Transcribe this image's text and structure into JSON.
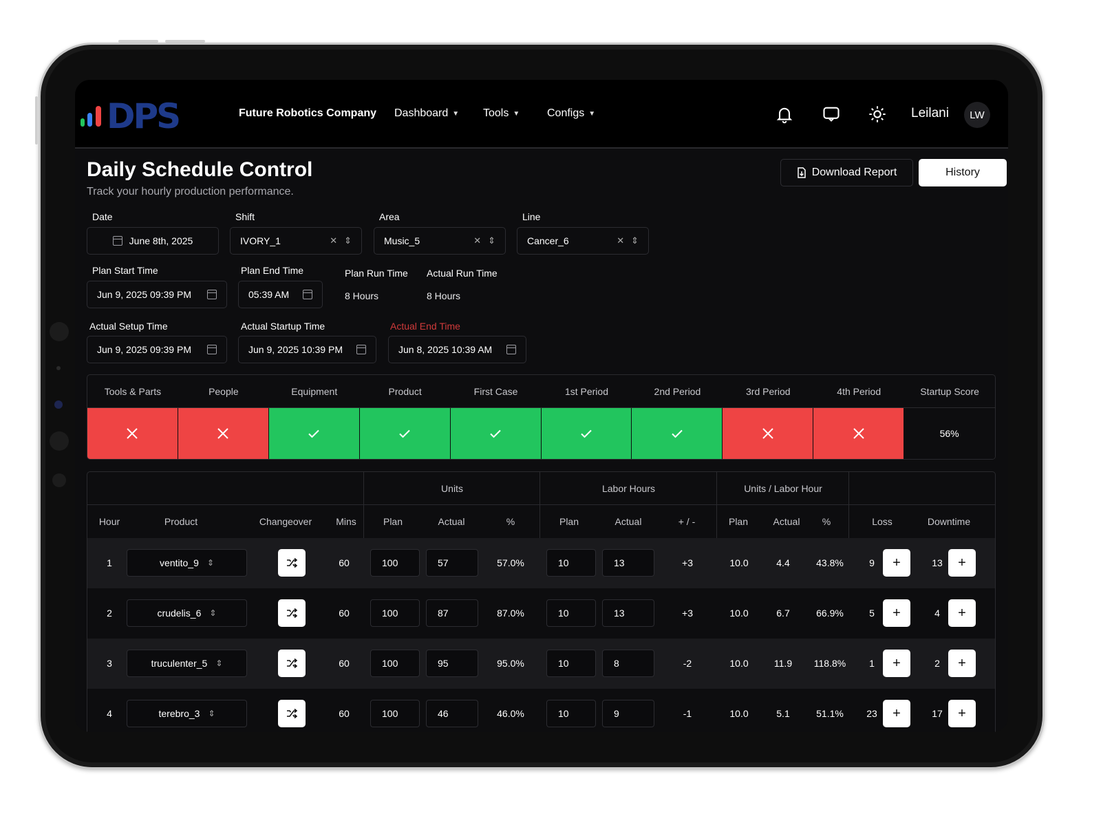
{
  "brand": {
    "logo_text": "DPS",
    "company": "Future Robotics Company"
  },
  "nav": {
    "dashboard": "Dashboard",
    "tools": "Tools",
    "configs": "Configs"
  },
  "user": {
    "name": "Leilani",
    "initials": "LW"
  },
  "page": {
    "title": "Daily Schedule Control",
    "subtitle": "Track your hourly production performance."
  },
  "actions": {
    "download": "Download Report",
    "history": "History"
  },
  "filters": {
    "date": {
      "label": "Date",
      "value": "June 8th, 2025"
    },
    "shift": {
      "label": "Shift",
      "value": "IVORY_1"
    },
    "area": {
      "label": "Area",
      "value": "Music_5"
    },
    "line": {
      "label": "Line",
      "value": "Cancer_6"
    }
  },
  "times": {
    "plan_start": {
      "label": "Plan Start Time",
      "value": "Jun 9, 2025 09:39 PM"
    },
    "plan_end": {
      "label": "Plan End Time",
      "value": "05:39 AM"
    },
    "plan_run": {
      "label": "Plan Run Time",
      "value": "8 Hours"
    },
    "actual_run": {
      "label": "Actual Run Time",
      "value": "8 Hours"
    },
    "actual_setup": {
      "label": "Actual Setup Time",
      "value": "Jun 9, 2025 09:39 PM"
    },
    "actual_startup": {
      "label": "Actual Startup Time",
      "value": "Jun 9, 2025 10:39 PM"
    },
    "actual_end": {
      "label": "Actual End Time",
      "value": "Jun 8, 2025 10:39 AM"
    }
  },
  "startup": {
    "headers": [
      "Tools & Parts",
      "People",
      "Equipment",
      "Product",
      "First Case",
      "1st Period",
      "2nd Period",
      "3rd Period",
      "4th Period",
      "Startup Score"
    ],
    "results": [
      "fail",
      "fail",
      "pass",
      "pass",
      "pass",
      "pass",
      "pass",
      "fail",
      "fail"
    ],
    "score": "56%"
  },
  "colors": {
    "fail": "#ef4444",
    "pass": "#22c55e",
    "background": "#0d0d0f"
  },
  "table": {
    "groups": {
      "units": "Units",
      "labor": "Labor Hours",
      "ulh": "Units / Labor Hour"
    },
    "columns": {
      "hour": "Hour",
      "product": "Product",
      "changeover": "Changeover",
      "mins": "Mins",
      "plan": "Plan",
      "actual": "Actual",
      "pct": "%",
      "plusminus": "+ / -",
      "loss": "Loss",
      "downtime": "Downtime"
    },
    "rows": [
      {
        "hour": "1",
        "product": "ventito_9",
        "mins": "60",
        "units_plan": "100",
        "units_actual": "57",
        "units_pct": "57.0%",
        "labor_plan": "10",
        "labor_actual": "13",
        "labor_diff": "+3",
        "ulh_plan": "10.0",
        "ulh_actual": "4.4",
        "ulh_pct": "43.8%",
        "loss": "9",
        "downtime": "13"
      },
      {
        "hour": "2",
        "product": "crudelis_6",
        "mins": "60",
        "units_plan": "100",
        "units_actual": "87",
        "units_pct": "87.0%",
        "labor_plan": "10",
        "labor_actual": "13",
        "labor_diff": "+3",
        "ulh_plan": "10.0",
        "ulh_actual": "6.7",
        "ulh_pct": "66.9%",
        "loss": "5",
        "downtime": "4"
      },
      {
        "hour": "3",
        "product": "truculenter_5",
        "mins": "60",
        "units_plan": "100",
        "units_actual": "95",
        "units_pct": "95.0%",
        "labor_plan": "10",
        "labor_actual": "8",
        "labor_diff": "-2",
        "ulh_plan": "10.0",
        "ulh_actual": "11.9",
        "ulh_pct": "118.8%",
        "loss": "1",
        "downtime": "2"
      },
      {
        "hour": "4",
        "product": "terebro_3",
        "mins": "60",
        "units_plan": "100",
        "units_actual": "46",
        "units_pct": "46.0%",
        "labor_plan": "10",
        "labor_actual": "9",
        "labor_diff": "-1",
        "ulh_plan": "10.0",
        "ulh_actual": "5.1",
        "ulh_pct": "51.1%",
        "loss": "23",
        "downtime": "17"
      }
    ]
  }
}
